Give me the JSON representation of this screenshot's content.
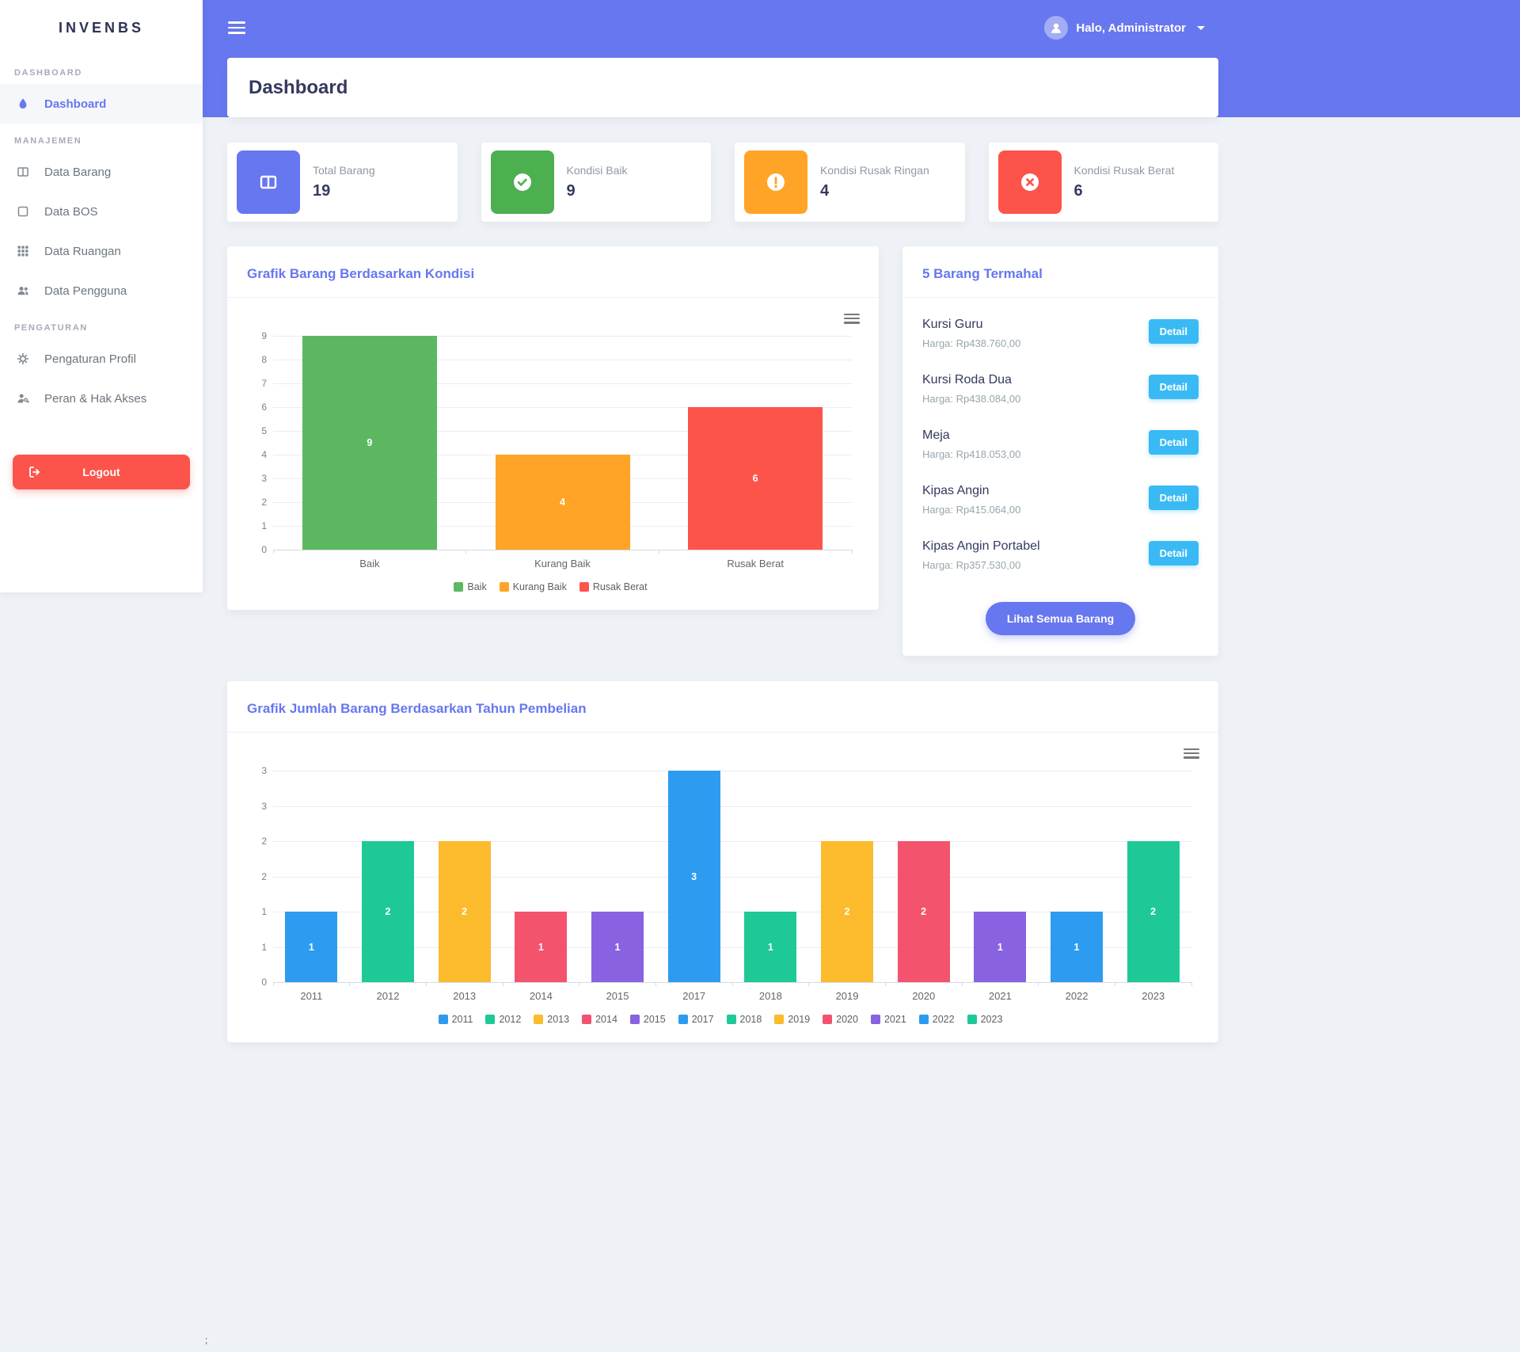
{
  "app": {
    "brand": "INVENBS"
  },
  "theme": {
    "primary": "#6777ef",
    "success": "#4caf50",
    "warning": "#ffa426",
    "danger": "#fc544b",
    "info": "#3abaf4"
  },
  "topbar": {
    "user_greeting": "Halo, Administrator"
  },
  "page": {
    "title": "Dashboard"
  },
  "sidebar": {
    "sections": [
      {
        "label": "DASHBOARD",
        "items": [
          {
            "label": "Dashboard",
            "icon": "fire-icon",
            "active": true
          }
        ]
      },
      {
        "label": "MANAJEMEN",
        "items": [
          {
            "label": "Data Barang",
            "icon": "columns-icon"
          },
          {
            "label": "Data BOS",
            "icon": "square-icon"
          },
          {
            "label": "Data Ruangan",
            "icon": "grid-icon"
          },
          {
            "label": "Data Pengguna",
            "icon": "users-icon"
          }
        ]
      },
      {
        "label": "PENGATURAN",
        "items": [
          {
            "label": "Pengaturan Profil",
            "icon": "gear-icon"
          },
          {
            "label": "Peran & Hak Akses",
            "icon": "user-key-icon"
          }
        ]
      }
    ],
    "logout_label": "Logout"
  },
  "stats": [
    {
      "label": "Total Barang",
      "value": "19",
      "color": "#6777ef",
      "icon": "columns-icon"
    },
    {
      "label": "Kondisi Baik",
      "value": "9",
      "color": "#4caf50",
      "icon": "check-circle-icon"
    },
    {
      "label": "Kondisi Rusak Ringan",
      "value": "4",
      "color": "#ffa426",
      "icon": "exclamation-circle-icon"
    },
    {
      "label": "Kondisi Rusak Berat",
      "value": "6",
      "color": "#fc544b",
      "icon": "times-circle-icon"
    }
  ],
  "chart_data": [
    {
      "type": "bar",
      "title": "Grafik Barang Berdasarkan Kondisi",
      "categories": [
        "Baik",
        "Kurang Baik",
        "Rusak Berat"
      ],
      "values": [
        9,
        4,
        6
      ],
      "colors": [
        "#5cb860",
        "#ffa426",
        "#fc544b"
      ],
      "legend": [
        "Baik",
        "Kurang Baik",
        "Rusak Berat"
      ],
      "ylim": [
        0,
        9
      ],
      "ytick_labels": [
        "0",
        "1",
        "2",
        "3",
        "4",
        "5",
        "6",
        "7",
        "8",
        "9"
      ],
      "grid": true,
      "legend_position": "bottom"
    },
    {
      "type": "bar",
      "title": "Grafik Jumlah Barang Berdasarkan Tahun Pembelian",
      "categories": [
        "2011",
        "2012",
        "2013",
        "2014",
        "2015",
        "2017",
        "2018",
        "2019",
        "2020",
        "2021",
        "2022",
        "2023"
      ],
      "values": [
        1,
        2,
        2,
        1,
        1,
        3,
        1,
        2,
        2,
        1,
        1,
        2
      ],
      "colors": [
        "#2d9bf0",
        "#1ec997",
        "#fcba2d",
        "#f4536e",
        "#8862e0",
        "#2d9bf0",
        "#1ec997",
        "#fcba2d",
        "#f4536e",
        "#8862e0",
        "#2d9bf0",
        "#1ec997"
      ],
      "ylim": [
        0,
        3
      ],
      "ytick_labels": [
        "0",
        "1",
        "1",
        "2",
        "2",
        "3",
        "3"
      ],
      "grid": true,
      "legend_position": "bottom"
    }
  ],
  "termahal": {
    "title": "5 Barang Termahal",
    "detail_label": "Detail",
    "see_all_label": "Lihat Semua Barang",
    "items": [
      {
        "name": "Kursi Guru",
        "price": "Harga: Rp438.760,00"
      },
      {
        "name": "Kursi Roda Dua",
        "price": "Harga: Rp438.084,00"
      },
      {
        "name": "Meja",
        "price": "Harga: Rp418.053,00"
      },
      {
        "name": "Kipas Angin",
        "price": "Harga: Rp415.064,00"
      },
      {
        "name": "Kipas Angin Portabel",
        "price": "Harga: Rp357.530,00"
      }
    ]
  },
  "stray_char": ";"
}
